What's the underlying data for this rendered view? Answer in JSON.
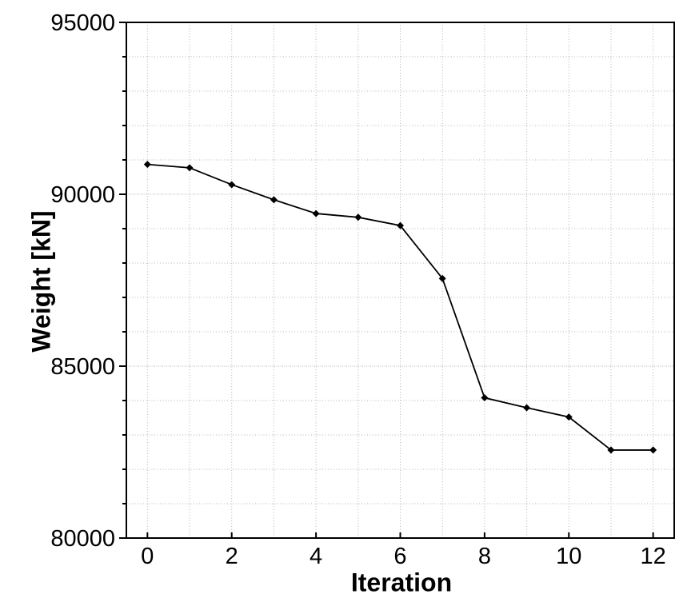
{
  "figure": {
    "background_color": "#ffffff",
    "plot_border_color": "#000000",
    "text_color": "#000000"
  },
  "chart_data": {
    "type": "line",
    "title": "",
    "xlabel": "Iteration",
    "ylabel": "Weight [kN]",
    "x": [
      0,
      1,
      2,
      3,
      4,
      5,
      6,
      7,
      8,
      9,
      10,
      11,
      12
    ],
    "series": [
      {
        "name": "Weight",
        "values": [
          90870,
          90770,
          90280,
          89840,
          89440,
          89330,
          89090,
          87550,
          84080,
          83790,
          83520,
          82560,
          82560
        ]
      }
    ],
    "xlim": [
      -0.5,
      12.5
    ],
    "ylim": [
      80000,
      95000
    ],
    "x_major_ticks": [
      0,
      2,
      4,
      6,
      8,
      10,
      12
    ],
    "x_tick_labels": [
      "0",
      "2",
      "4",
      "6",
      "8",
      "10",
      "12"
    ],
    "y_major_ticks": [
      80000,
      85000,
      90000,
      95000
    ],
    "y_tick_labels": [
      "80000",
      "85000",
      "90000",
      "95000"
    ],
    "y_minor_tick_interval": 1000,
    "grid": {
      "visible": true,
      "style": "dotted",
      "x_interval": 1,
      "y_interval": 1000,
      "color": "#b3b3b3"
    },
    "legend": {
      "visible": false
    },
    "marker": "diamond",
    "line_color": "#000000",
    "marker_color": "#000000"
  }
}
